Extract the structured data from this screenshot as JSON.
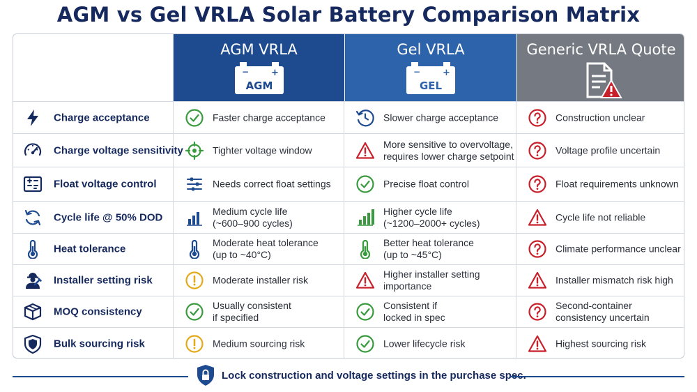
{
  "title": "AGM vs Gel VRLA Solar Battery Comparison Matrix",
  "columns": [
    {
      "label": "AGM VRLA",
      "icon": "agm-battery-icon",
      "icon_text": "AGM",
      "color": "#1e4a8f"
    },
    {
      "label": "Gel VRLA",
      "icon": "gel-battery-icon",
      "icon_text": "GEL",
      "color": "#2d63aa"
    },
    {
      "label": "Generic VRLA Quote",
      "icon": "document-warning-icon",
      "color": "#757a82"
    }
  ],
  "rows": [
    {
      "criterion": "Charge acceptance",
      "icon": "lightning-icon",
      "agm": {
        "icon": "check-icon",
        "text": [
          "Faster charge acceptance"
        ]
      },
      "gel": {
        "icon": "clock-icon",
        "text": [
          "Slower charge acceptance"
        ]
      },
      "generic": {
        "icon": "question-icon",
        "text": [
          "Construction unclear"
        ]
      }
    },
    {
      "criterion": "Charge voltage sensitivity",
      "icon": "gauge-icon",
      "agm": {
        "icon": "crosshair-icon",
        "text": [
          "Tighter voltage window"
        ]
      },
      "gel": {
        "icon": "warning-icon",
        "text": [
          "More sensitive to overvoltage,",
          "requires lower charge setpoint"
        ]
      },
      "generic": {
        "icon": "question-icon",
        "text": [
          "Voltage profile uncertain"
        ]
      }
    },
    {
      "criterion": "Float voltage control",
      "icon": "controller-icon",
      "agm": {
        "icon": "sliders-icon",
        "text": [
          "Needs correct float settings"
        ]
      },
      "gel": {
        "icon": "check-icon",
        "text": [
          "Precise float control"
        ]
      },
      "generic": {
        "icon": "question-icon",
        "text": [
          "Float requirements unknown"
        ]
      }
    },
    {
      "criterion": "Cycle life @ 50% DOD",
      "icon": "cycle-icon",
      "agm": {
        "icon": "bar-chart-icon",
        "text": [
          "Medium cycle life",
          "(~600–900 cycles)"
        ]
      },
      "gel": {
        "icon": "bar-chart-icon",
        "text": [
          "Higher cycle life",
          "(~1200–2000+ cycles)"
        ]
      },
      "generic": {
        "icon": "warning-icon",
        "text": [
          "Cycle life not reliable"
        ]
      }
    },
    {
      "criterion": "Heat tolerance",
      "icon": "thermometer-icon",
      "agm": {
        "icon": "thermometer-icon",
        "text": [
          "Moderate heat tolerance",
          "(up to ~40°C)"
        ]
      },
      "gel": {
        "icon": "thermometer-icon",
        "text": [
          "Better heat tolerance",
          "(up to ~45°C)"
        ]
      },
      "generic": {
        "icon": "question-icon",
        "text": [
          "Climate performance unclear"
        ]
      }
    },
    {
      "criterion": "Installer setting risk",
      "icon": "installer-icon",
      "agm": {
        "icon": "caution-icon",
        "text": [
          "Moderate installer risk"
        ]
      },
      "gel": {
        "icon": "warning-icon",
        "text": [
          "Higher installer setting",
          "importance"
        ]
      },
      "generic": {
        "icon": "warning-icon",
        "text": [
          "Installer mismatch risk high"
        ]
      }
    },
    {
      "criterion": "MOQ consistency",
      "icon": "box-icon",
      "agm": {
        "icon": "check-icon",
        "text": [
          "Usually consistent",
          "if specified"
        ]
      },
      "gel": {
        "icon": "check-icon",
        "text": [
          "Consistent if",
          "locked in spec"
        ]
      },
      "generic": {
        "icon": "question-icon",
        "text": [
          "Second-container",
          "consistency uncertain"
        ]
      }
    },
    {
      "criterion": "Bulk sourcing risk",
      "icon": "shield-icon",
      "agm": {
        "icon": "caution-icon",
        "text": [
          "Medium sourcing risk"
        ]
      },
      "gel": {
        "icon": "check-icon",
        "text": [
          "Lower lifecycle risk"
        ]
      },
      "generic": {
        "icon": "warning-icon",
        "text": [
          "Highest sourcing risk"
        ]
      }
    }
  ],
  "footer": {
    "text": "Lock construction and voltage settings in the purchase spec.",
    "icon": "lock-shield-icon"
  },
  "colors": {
    "navy": "#16295e",
    "green": "#3a9a3e",
    "red": "#c8202b",
    "amber": "#e3a91a",
    "blue": "#1e4a8f",
    "gray": "#757a82"
  }
}
